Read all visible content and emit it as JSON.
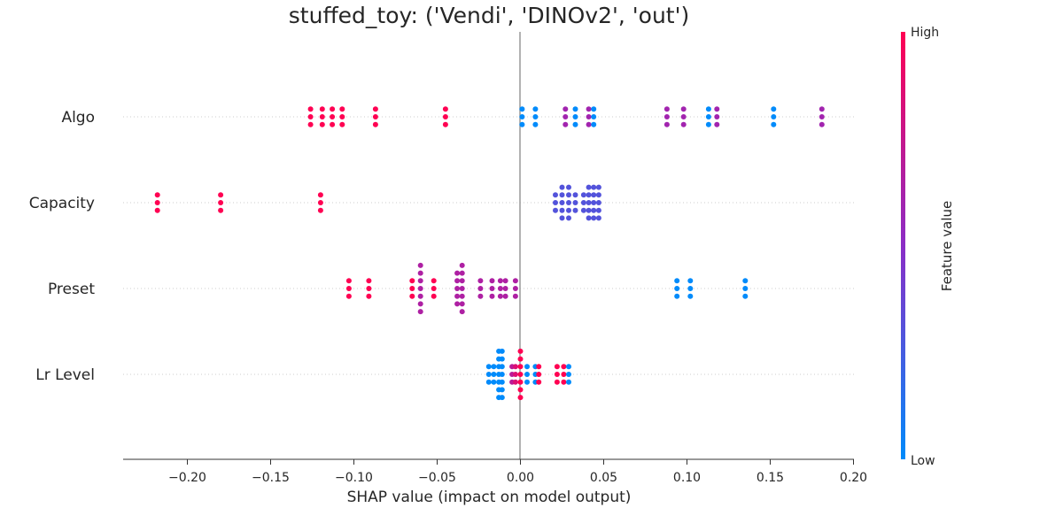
{
  "chart_data": {
    "type": "scatter",
    "subtype": "shap-beeswarm",
    "title": "stuffed_toy: ('Vendi', 'DINOv2', 'out')",
    "xlabel": "SHAP value (impact on model output)",
    "xlim": [
      -0.24,
      0.2
    ],
    "xticks": [
      -0.2,
      -0.15,
      -0.1,
      -0.05,
      0.0,
      0.05,
      0.1,
      0.15,
      0.2
    ],
    "xtick_labels": [
      "−0.20",
      "−0.15",
      "−0.10",
      "−0.05",
      "0.00",
      "0.05",
      "0.10",
      "0.15",
      "0.20"
    ],
    "colorbar": {
      "label": "Feature value",
      "high_label": "High",
      "low_label": "Low",
      "high_color": "#ff0052",
      "low_color": "#008bfb"
    },
    "features": [
      {
        "name": "Algo",
        "points": [
          {
            "x": -0.126,
            "v": 1.0,
            "n": 3
          },
          {
            "x": -0.119,
            "v": 1.0,
            "n": 3
          },
          {
            "x": -0.113,
            "v": 1.0,
            "n": 3
          },
          {
            "x": -0.107,
            "v": 1.0,
            "n": 3
          },
          {
            "x": -0.087,
            "v": 1.0,
            "n": 3
          },
          {
            "x": -0.045,
            "v": 1.0,
            "n": 3
          },
          {
            "x": 0.001,
            "v": 0.0,
            "n": 3
          },
          {
            "x": 0.009,
            "v": 0.0,
            "n": 3
          },
          {
            "x": 0.027,
            "v": 0.6,
            "n": 3
          },
          {
            "x": 0.033,
            "v": 0.0,
            "n": 3
          },
          {
            "x": 0.041,
            "v": 0.6,
            "n": 3
          },
          {
            "x": 0.044,
            "v": 0.0,
            "n": 3
          },
          {
            "x": 0.088,
            "v": 0.6,
            "n": 3
          },
          {
            "x": 0.098,
            "v": 0.6,
            "n": 3
          },
          {
            "x": 0.113,
            "v": 0.0,
            "n": 3
          },
          {
            "x": 0.118,
            "v": 0.6,
            "n": 3
          },
          {
            "x": 0.152,
            "v": 0.0,
            "n": 3
          },
          {
            "x": 0.181,
            "v": 0.6,
            "n": 3
          }
        ]
      },
      {
        "name": "Capacity",
        "points": [
          {
            "x": -0.218,
            "v": 1.0,
            "n": 3
          },
          {
            "x": -0.18,
            "v": 1.0,
            "n": 3
          },
          {
            "x": -0.12,
            "v": 1.0,
            "n": 3
          },
          {
            "x": 0.021,
            "v": 0.3,
            "n": 3
          },
          {
            "x": 0.025,
            "v": 0.3,
            "n": 5
          },
          {
            "x": 0.029,
            "v": 0.3,
            "n": 5
          },
          {
            "x": 0.033,
            "v": 0.3,
            "n": 3
          },
          {
            "x": 0.038,
            "v": 0.3,
            "n": 3
          },
          {
            "x": 0.041,
            "v": 0.3,
            "n": 5
          },
          {
            "x": 0.044,
            "v": 0.3,
            "n": 5
          },
          {
            "x": 0.047,
            "v": 0.3,
            "n": 5
          }
        ]
      },
      {
        "name": "Preset",
        "points": [
          {
            "x": -0.103,
            "v": 1.0,
            "n": 3
          },
          {
            "x": -0.091,
            "v": 1.0,
            "n": 3
          },
          {
            "x": -0.065,
            "v": 1.0,
            "n": 3
          },
          {
            "x": -0.052,
            "v": 1.0,
            "n": 3
          },
          {
            "x": -0.06,
            "v": 0.65,
            "n": 7
          },
          {
            "x": -0.038,
            "v": 0.65,
            "n": 5
          },
          {
            "x": -0.035,
            "v": 0.65,
            "n": 7
          },
          {
            "x": -0.024,
            "v": 0.65,
            "n": 3
          },
          {
            "x": -0.017,
            "v": 0.65,
            "n": 3
          },
          {
            "x": -0.012,
            "v": 0.65,
            "n": 3
          },
          {
            "x": -0.009,
            "v": 0.65,
            "n": 3
          },
          {
            "x": -0.003,
            "v": 0.65,
            "n": 3
          },
          {
            "x": 0.094,
            "v": 0.0,
            "n": 3
          },
          {
            "x": 0.102,
            "v": 0.0,
            "n": 3
          },
          {
            "x": 0.135,
            "v": 0.0,
            "n": 3
          }
        ]
      },
      {
        "name": "Lr Level",
        "points": [
          {
            "x": -0.019,
            "v": 0.0,
            "n": 3
          },
          {
            "x": -0.016,
            "v": 0.0,
            "n": 3
          },
          {
            "x": -0.013,
            "v": 0.0,
            "n": 7
          },
          {
            "x": -0.011,
            "v": 0.0,
            "n": 7
          },
          {
            "x": -0.005,
            "v": 0.7,
            "n": 3
          },
          {
            "x": -0.003,
            "v": 0.85,
            "n": 3
          },
          {
            "x": 0.0,
            "v": 1.0,
            "n": 7
          },
          {
            "x": 0.004,
            "v": 0.0,
            "n": 3
          },
          {
            "x": 0.009,
            "v": 0.0,
            "n": 3
          },
          {
            "x": 0.011,
            "v": 1.0,
            "n": 3
          },
          {
            "x": 0.022,
            "v": 1.0,
            "n": 3
          },
          {
            "x": 0.026,
            "v": 1.0,
            "n": 3
          },
          {
            "x": 0.029,
            "v": 0.0,
            "n": 3
          }
        ]
      }
    ]
  }
}
